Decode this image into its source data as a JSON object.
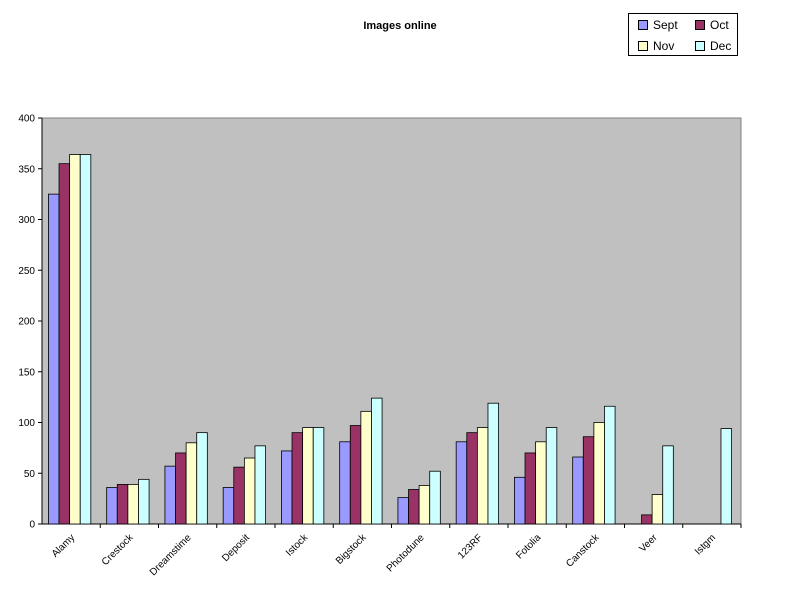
{
  "chart_data": {
    "type": "bar",
    "title": "Images online",
    "xlabel": "",
    "ylabel": "",
    "ylim": [
      0,
      400
    ],
    "yticks": [
      0,
      50,
      100,
      150,
      200,
      250,
      300,
      350,
      400
    ],
    "grid": false,
    "legend_position": "top-right",
    "plot_background": "#c0c0c0",
    "categories": [
      "Alamy",
      "Crestock",
      "Dreamstime",
      "Deposit",
      "Istock",
      "Bigstock",
      "Photodune",
      "123RF",
      "Fotolia",
      "Canstock",
      "Veer",
      "Istgm"
    ],
    "series": [
      {
        "name": "Sept",
        "color": "#9999ff",
        "values": [
          325,
          36,
          57,
          36,
          72,
          81,
          26,
          81,
          46,
          66,
          null,
          null
        ]
      },
      {
        "name": "Oct",
        "color": "#993366",
        "values": [
          355,
          39,
          70,
          56,
          90,
          97,
          34,
          90,
          70,
          86,
          9,
          null
        ]
      },
      {
        "name": "Nov",
        "color": "#ffffcc",
        "values": [
          364,
          39,
          80,
          65,
          95,
          111,
          38,
          95,
          81,
          100,
          29,
          null
        ]
      },
      {
        "name": "Dec",
        "color": "#ccffff",
        "values": [
          364,
          44,
          90,
          77,
          95,
          124,
          52,
          119,
          95,
          116,
          77,
          94
        ]
      }
    ]
  }
}
